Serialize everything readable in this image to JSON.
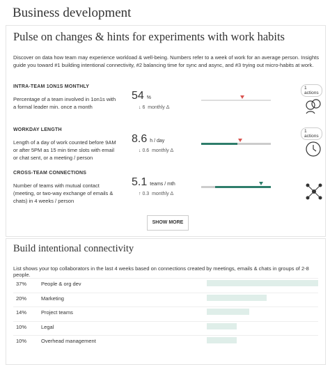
{
  "header": {
    "title": "Business development"
  },
  "pulse": {
    "title": "Pulse on changes & hints for experiments with work habits",
    "description": "Discover on data how team may experience workload & well-being. Numbers refer to a week of work for an average person. Insights guide you toward #1 building intentional connectivity, #2 balancing time for sync and async, and #3 trying out micro-habits at work.",
    "metrics": [
      {
        "name": "INTRA-TEAM 1ON1S MONTHLY",
        "description": "Percentage of a team involved in 1on1s with a formal leader min. once a month",
        "value": "54",
        "unit": "%",
        "change": "↓ 6",
        "change_label": "monthly Δ",
        "actions": "1 actions"
      },
      {
        "name": "WORKDAY LENGTH",
        "description": "Length of a day of work counted before 9AM or after 5PM as 15 min time slots with email or chat sent, or a meeting / person",
        "value": "8.6",
        "unit": "h / day",
        "change": "↓ 0.6",
        "change_label": "monthly Δ",
        "actions": "1 actions"
      },
      {
        "name": "CROSS-TEAM CONNECTIONS",
        "description": "Number of teams with mutual contact (meeting, or two-way exchange of emails & chats) in 4 weeks / person",
        "value": "5.1",
        "unit": "teams / mth",
        "change": "↑ 0.3",
        "change_label": "monthly Δ"
      }
    ],
    "button": "SHOW MORE"
  },
  "connectivity": {
    "title": "Build intentional connectivity",
    "description": "List shows your top collaborators in the last 4 weeks based on connections created by meetings, emails & chats in groups of 2-8 people.",
    "rows": [
      {
        "value": 37,
        "value_label": "37%",
        "name": "People & org dev"
      },
      {
        "value": 20,
        "value_label": "20%",
        "name": "Marketing"
      },
      {
        "value": 14,
        "value_label": "14%",
        "name": "Project teams"
      },
      {
        "value": 10,
        "value_label": "10%",
        "name": "Legal"
      },
      {
        "value": 10,
        "value_label": "10%",
        "name": "Overhead management"
      }
    ]
  }
}
